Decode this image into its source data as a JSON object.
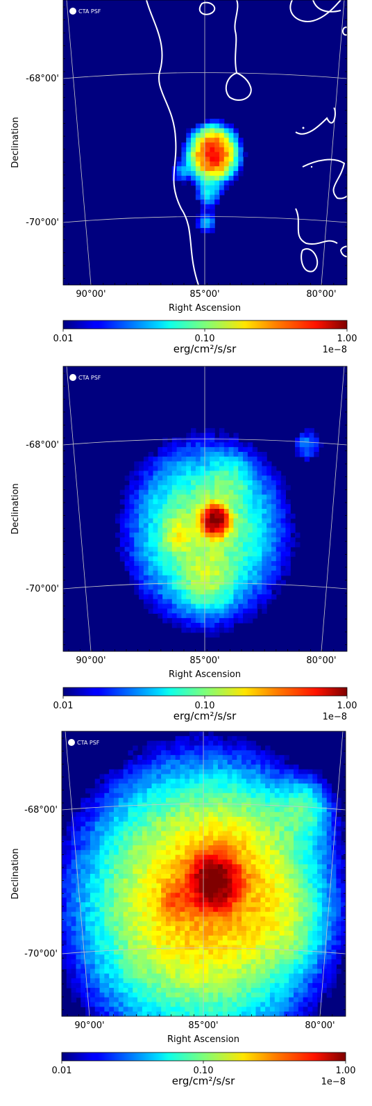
{
  "chart_data": [
    {
      "type": "heatmap",
      "panel": 1,
      "xlabel": "Right Ascension",
      "ylabel": "Declination",
      "x_ticks": [
        "90°00'",
        "85°00'",
        "80°00'"
      ],
      "y_ticks": [
        "-68°00'",
        "-70°00'"
      ],
      "psf_label": "CTA PSF",
      "colorbar": {
        "ticks": [
          "0.01",
          "0.10",
          "1.00"
        ],
        "unit": "erg/cm²/s/sr",
        "scale": "1e−8",
        "log": true
      },
      "colormap": "jet",
      "sources": [
        {
          "ra": 84.7,
          "dec": -69.05,
          "peak": 0.55,
          "sigma": 0.18
        },
        {
          "ra": 84.9,
          "dec": -69.6,
          "peak": 0.05,
          "sigma": 0.12
        },
        {
          "ra": 85.0,
          "dec": -70.0,
          "peak": 0.04,
          "sigma": 0.1
        },
        {
          "ra": 86.1,
          "dec": -69.3,
          "peak": 0.03,
          "sigma": 0.1
        }
      ]
    },
    {
      "type": "heatmap",
      "panel": 2,
      "xlabel": "Right Ascension",
      "ylabel": "Declination",
      "x_ticks": [
        "90°00'",
        "85°00'",
        "80°00'"
      ],
      "y_ticks": [
        "-68°00'",
        "-70°00'"
      ],
      "psf_label": "CTA PSF",
      "colorbar": {
        "ticks": [
          "0.01",
          "0.10",
          "1.00"
        ],
        "unit": "erg/cm²/s/sr",
        "scale": "1e−8",
        "log": true
      },
      "colormap": "jet",
      "sources": [
        {
          "ra": 84.6,
          "dec": -69.05,
          "peak": 1.0,
          "sigma": 0.12
        },
        {
          "ra": 85.0,
          "dec": -69.2,
          "peak": 0.12,
          "sigma": 0.65
        },
        {
          "ra": 86.2,
          "dec": -69.25,
          "peak": 0.08,
          "sigma": 0.15
        },
        {
          "ra": 85.0,
          "dec": -69.9,
          "peak": 0.07,
          "sigma": 0.25
        },
        {
          "ra": 84.0,
          "dec": -68.5,
          "peak": 0.04,
          "sigma": 0.2
        },
        {
          "ra": 80.6,
          "dec": -68.0,
          "peak": 0.03,
          "sigma": 0.15
        }
      ]
    },
    {
      "type": "heatmap",
      "panel": 3,
      "xlabel": "Right Ascension",
      "ylabel": "Declination",
      "x_ticks": [
        "90°00'",
        "85°00'",
        "80°00'"
      ],
      "y_ticks": [
        "-68°00'",
        "-70°00'"
      ],
      "psf_label": "CTA PSF",
      "colorbar": {
        "ticks": [
          "0.01",
          "0.10",
          "1.00"
        ],
        "unit": "erg/cm²/s/sr",
        "scale": "1e−8",
        "log": true
      },
      "colormap": "jet",
      "sources": [
        {
          "ra": 84.6,
          "dec": -69.0,
          "peak": 1.0,
          "sigma": 0.22
        },
        {
          "ra": 85.2,
          "dec": -69.3,
          "peak": 0.25,
          "sigma": 0.95
        },
        {
          "ra": 86.3,
          "dec": -69.25,
          "peak": 0.15,
          "sigma": 0.15
        },
        {
          "ra": 83.5,
          "dec": -68.8,
          "peak": 0.08,
          "sigma": 0.6
        },
        {
          "ra": 80.7,
          "dec": -68.0,
          "peak": 0.06,
          "sigma": 0.25
        },
        {
          "ra": 81.5,
          "dec": -69.6,
          "peak": 0.05,
          "sigma": 0.35
        }
      ]
    }
  ]
}
